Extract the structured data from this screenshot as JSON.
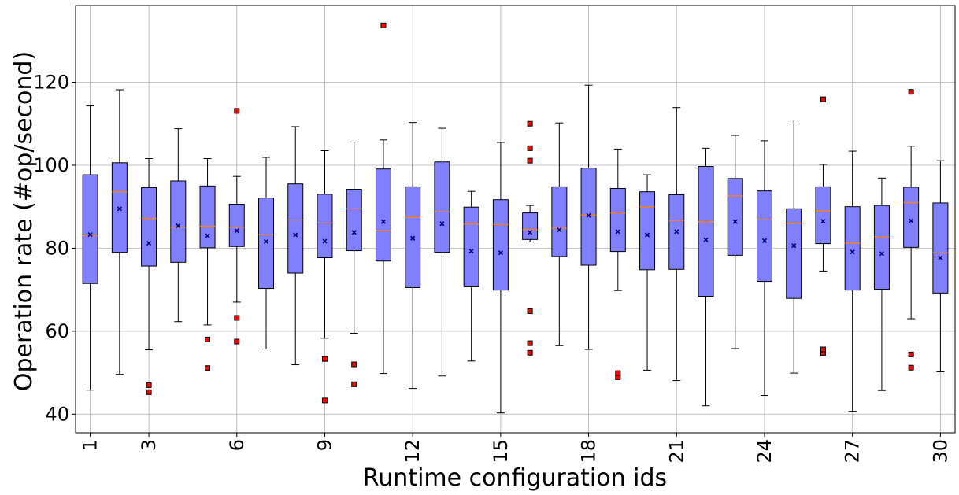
{
  "chart_data": {
    "type": "boxplot",
    "xlabel": "Runtime configuration ids",
    "ylabel": "Operation rate (#op/second)",
    "ylim": [
      35.5,
      138.5
    ],
    "yticks": [
      40,
      60,
      80,
      100,
      120
    ],
    "xticks": [
      1,
      3,
      6,
      9,
      12,
      15,
      18,
      21,
      24,
      27,
      30
    ],
    "grid": true,
    "colors": {
      "box_fill": "#8080ff",
      "box_edge": "#000000",
      "median": "#ff7f0e",
      "mean_marker": "#000080",
      "outlier_fill": "#ff0000"
    },
    "boxes": [
      {
        "id": 1,
        "whislo": 45.8,
        "q1": 71.5,
        "med": 83.0,
        "q3": 97.7,
        "whishi": 114.3,
        "mean": 83.3,
        "fliers": []
      },
      {
        "id": 2,
        "whislo": 49.6,
        "q1": 79.0,
        "med": 93.6,
        "q3": 100.6,
        "whishi": 118.2,
        "mean": 89.5,
        "fliers": []
      },
      {
        "id": 3,
        "whislo": 55.5,
        "q1": 75.7,
        "med": 87.2,
        "q3": 94.6,
        "whishi": 101.6,
        "mean": 81.2,
        "fliers": [
          45.3,
          47.0
        ]
      },
      {
        "id": 4,
        "whislo": 62.3,
        "q1": 76.6,
        "med": 85.0,
        "q3": 96.2,
        "whishi": 108.8,
        "mean": 85.4,
        "fliers": []
      },
      {
        "id": 5,
        "whislo": 61.5,
        "q1": 80.1,
        "med": 85.3,
        "q3": 95.0,
        "whishi": 101.6,
        "mean": 83.0,
        "fliers": [
          51.1,
          58.0
        ]
      },
      {
        "id": 6,
        "whislo": 67.0,
        "q1": 80.4,
        "med": 85.0,
        "q3": 90.6,
        "whishi": 97.3,
        "mean": 84.2,
        "fliers": [
          57.5,
          63.2,
          113.1
        ]
      },
      {
        "id": 7,
        "whislo": 55.7,
        "q1": 70.3,
        "med": 83.3,
        "q3": 92.1,
        "whishi": 101.9,
        "mean": 81.6,
        "fliers": []
      },
      {
        "id": 8,
        "whislo": 51.9,
        "q1": 74.0,
        "med": 86.8,
        "q3": 95.5,
        "whishi": 109.3,
        "mean": 83.2,
        "fliers": []
      },
      {
        "id": 9,
        "whislo": 58.3,
        "q1": 77.7,
        "med": 86.1,
        "q3": 93.0,
        "whishi": 103.5,
        "mean": 81.7,
        "fliers": [
          43.3,
          53.3
        ]
      },
      {
        "id": 10,
        "whislo": 59.5,
        "q1": 79.4,
        "med": 89.5,
        "q3": 94.2,
        "whishi": 105.6,
        "mean": 83.8,
        "fliers": [
          47.2,
          52.0
        ]
      },
      {
        "id": 11,
        "whislo": 49.8,
        "q1": 76.9,
        "med": 84.3,
        "q3": 99.1,
        "whishi": 106.1,
        "mean": 86.4,
        "fliers": [
          133.7
        ]
      },
      {
        "id": 12,
        "whislo": 46.2,
        "q1": 70.5,
        "med": 87.4,
        "q3": 94.8,
        "whishi": 110.3,
        "mean": 82.4,
        "fliers": []
      },
      {
        "id": 13,
        "whislo": 49.2,
        "q1": 79.0,
        "med": 88.8,
        "q3": 100.8,
        "whishi": 108.9,
        "mean": 85.9,
        "fliers": []
      },
      {
        "id": 14,
        "whislo": 52.8,
        "q1": 70.7,
        "med": 85.8,
        "q3": 89.9,
        "whishi": 93.7,
        "mean": 79.3,
        "fliers": []
      },
      {
        "id": 15,
        "whislo": 40.3,
        "q1": 69.9,
        "med": 85.7,
        "q3": 91.7,
        "whishi": 105.5,
        "mean": 78.9,
        "fliers": []
      },
      {
        "id": 16,
        "whislo": 81.5,
        "q1": 82.1,
        "med": 84.5,
        "q3": 88.5,
        "whishi": 90.3,
        "mean": 83.8,
        "fliers": [
          54.8,
          57.1,
          64.8,
          101.1,
          104.1,
          110.0
        ]
      },
      {
        "id": 17,
        "whislo": 56.5,
        "q1": 78.0,
        "med": 84.8,
        "q3": 94.8,
        "whishi": 110.2,
        "mean": 84.4,
        "fliers": []
      },
      {
        "id": 18,
        "whislo": 55.6,
        "q1": 75.9,
        "med": 88.0,
        "q3": 99.3,
        "whishi": 119.3,
        "mean": 87.9,
        "fliers": []
      },
      {
        "id": 19,
        "whislo": 69.8,
        "q1": 79.2,
        "med": 88.5,
        "q3": 94.4,
        "whishi": 103.9,
        "mean": 84.0,
        "fliers": [
          48.9,
          49.9
        ]
      },
      {
        "id": 20,
        "whislo": 50.6,
        "q1": 74.8,
        "med": 90.0,
        "q3": 93.6,
        "whishi": 97.7,
        "mean": 83.2,
        "fliers": []
      },
      {
        "id": 21,
        "whislo": 48.1,
        "q1": 74.9,
        "med": 86.7,
        "q3": 92.9,
        "whishi": 113.9,
        "mean": 84.0,
        "fliers": []
      },
      {
        "id": 22,
        "whislo": 42.0,
        "q1": 68.4,
        "med": 86.4,
        "q3": 99.7,
        "whishi": 104.1,
        "mean": 82.0,
        "fliers": []
      },
      {
        "id": 23,
        "whislo": 55.8,
        "q1": 78.3,
        "med": 92.6,
        "q3": 96.8,
        "whishi": 107.2,
        "mean": 86.4,
        "fliers": []
      },
      {
        "id": 24,
        "whislo": 44.5,
        "q1": 72.0,
        "med": 86.9,
        "q3": 93.8,
        "whishi": 105.9,
        "mean": 81.8,
        "fliers": []
      },
      {
        "id": 25,
        "whislo": 49.9,
        "q1": 67.9,
        "med": 85.9,
        "q3": 89.5,
        "whishi": 110.9,
        "mean": 80.6,
        "fliers": []
      },
      {
        "id": 26,
        "whislo": 74.5,
        "q1": 81.1,
        "med": 89.0,
        "q3": 94.8,
        "whishi": 100.2,
        "mean": 86.5,
        "fliers": [
          54.7,
          55.6,
          115.9
        ]
      },
      {
        "id": 27,
        "whislo": 40.7,
        "q1": 69.9,
        "med": 81.2,
        "q3": 90.0,
        "whishi": 103.4,
        "mean": 79.1,
        "fliers": []
      },
      {
        "id": 28,
        "whislo": 45.7,
        "q1": 70.1,
        "med": 82.8,
        "q3": 90.3,
        "whishi": 96.9,
        "mean": 78.7,
        "fliers": []
      },
      {
        "id": 29,
        "whislo": 63.0,
        "q1": 80.2,
        "med": 91.0,
        "q3": 94.7,
        "whishi": 104.6,
        "mean": 86.6,
        "fliers": [
          51.2,
          54.4,
          117.7
        ]
      },
      {
        "id": 30,
        "whislo": 50.2,
        "q1": 69.2,
        "med": 78.9,
        "q3": 90.9,
        "whishi": 101.1,
        "mean": 77.7,
        "fliers": []
      }
    ]
  }
}
